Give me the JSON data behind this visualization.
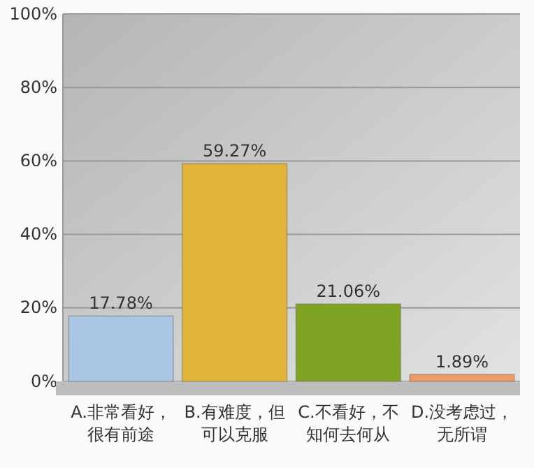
{
  "chart_data": {
    "type": "bar",
    "categories": [
      "A.非常看好，很有前途",
      "B.有难度，但可以克服",
      "C.不看好，不知何去何从",
      "D.没考虑过，无所谓"
    ],
    "values": [
      17.78,
      59.27,
      21.06,
      1.89
    ],
    "value_labels": [
      "17.78%",
      "59.27%",
      "21.06%",
      "1.89%"
    ],
    "colors": [
      "#a9c7e4",
      "#e2b43a",
      "#7fa323",
      "#f09a6a"
    ],
    "ylim": [
      0,
      100
    ],
    "yticks": [
      {
        "value": 0,
        "label": "0%"
      },
      {
        "value": 20,
        "label": "20%"
      },
      {
        "value": 40,
        "label": "40%"
      },
      {
        "value": 60,
        "label": "60%"
      },
      {
        "value": 80,
        "label": "80%"
      },
      {
        "value": 100,
        "label": "100%"
      }
    ],
    "grid": "y"
  }
}
